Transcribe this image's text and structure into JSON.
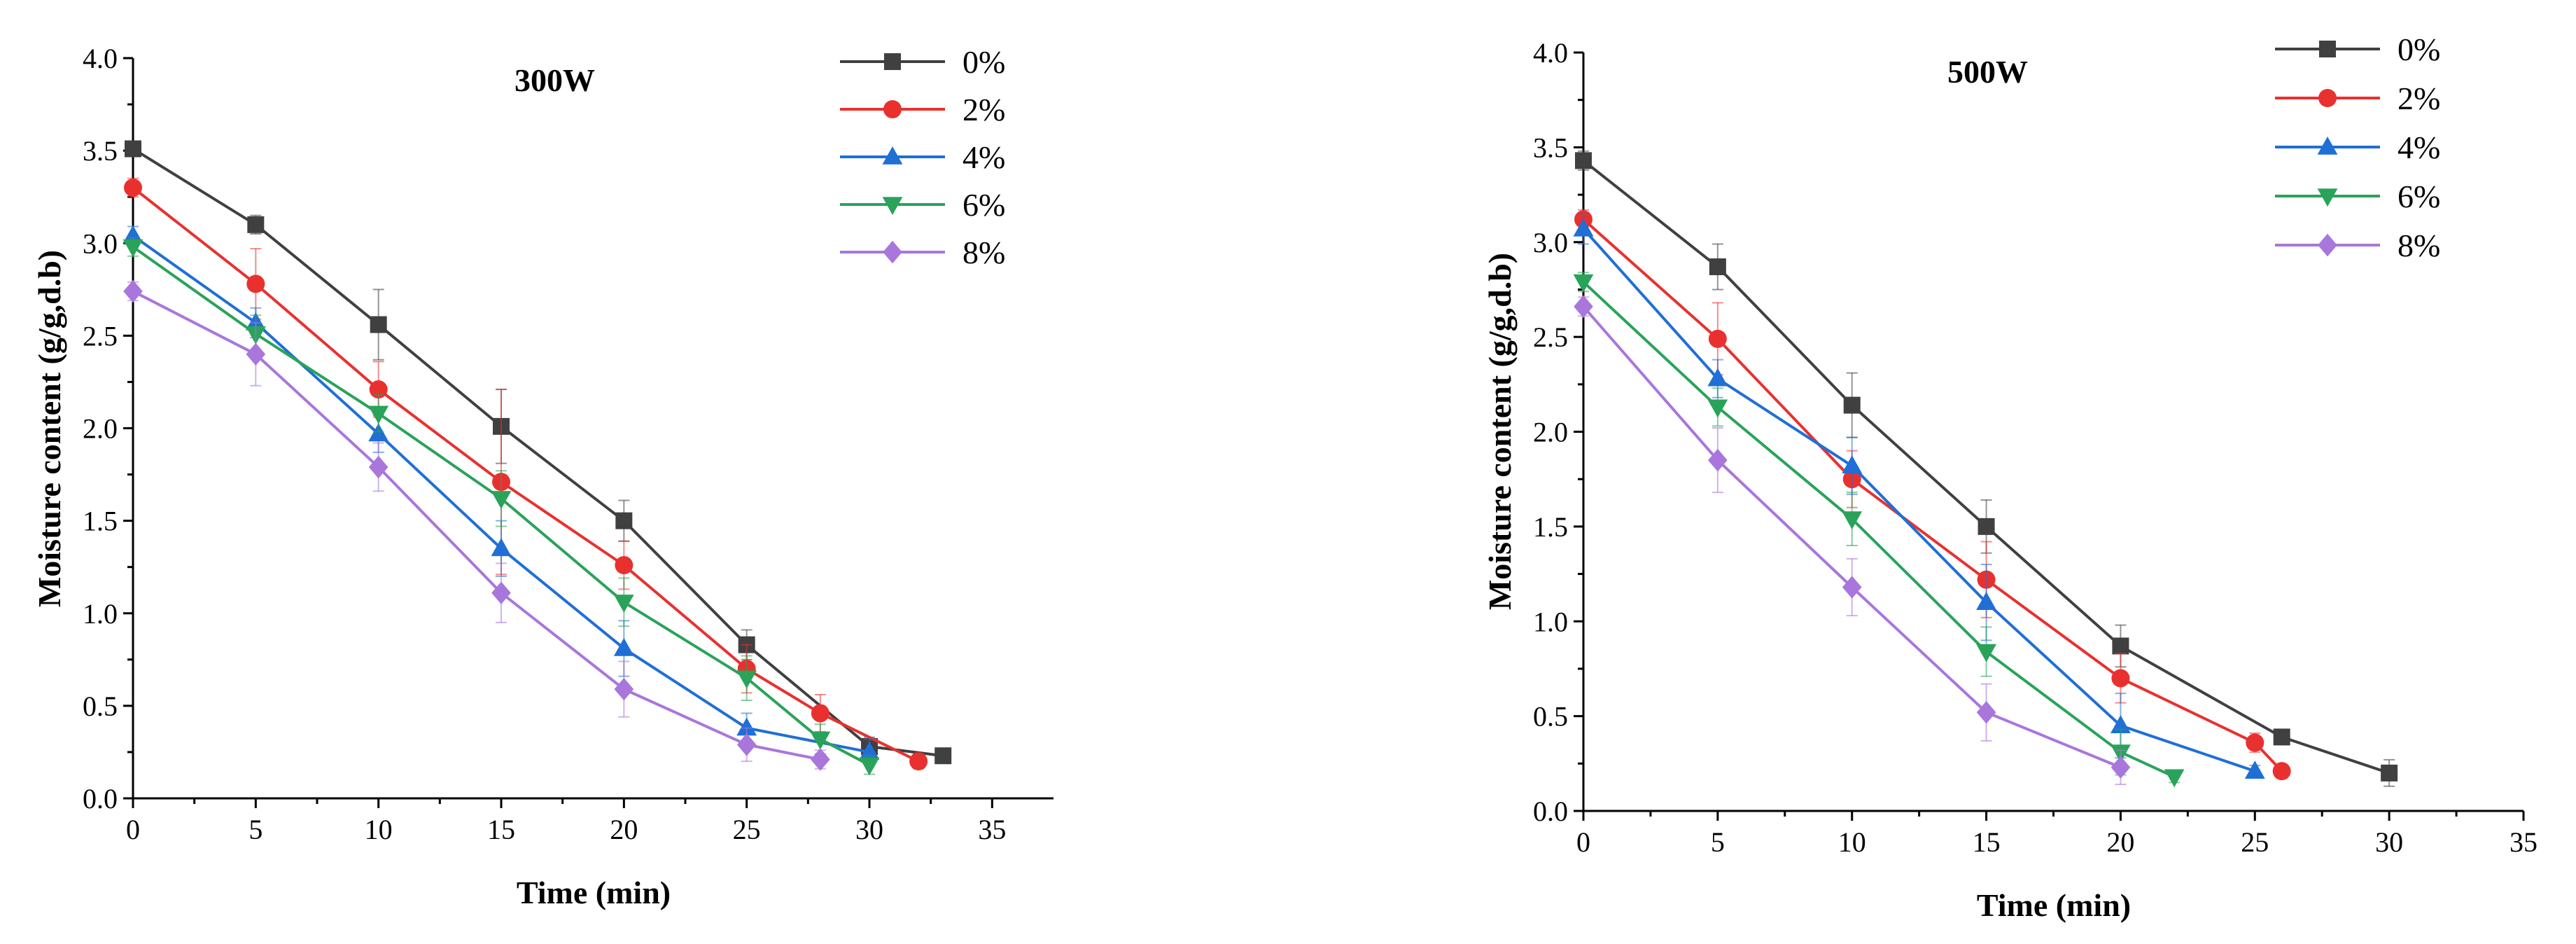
{
  "series_style": [
    {
      "color": "#404040",
      "marker": "square"
    },
    {
      "color": "#e8312f",
      "marker": "circle"
    },
    {
      "color": "#1f6fd6",
      "marker": "triangle-up"
    },
    {
      "color": "#2aa35a",
      "marker": "triangle-down"
    },
    {
      "color": "#a976dc",
      "marker": "diamond"
    }
  ],
  "chart_data": [
    {
      "type": "line",
      "title": "300W",
      "xlabel": "Time (min)",
      "ylabel": "Moisture content (g/g,d.b)",
      "xlim": [
        0,
        37.5
      ],
      "ylim": [
        0,
        4.0
      ],
      "xticks": [
        0,
        5,
        10,
        15,
        20,
        25,
        30,
        35
      ],
      "yticks": [
        0.0,
        0.5,
        1.0,
        1.5,
        2.0,
        2.5,
        3.0,
        3.5,
        4.0
      ],
      "xtick_labels": [
        "0",
        "5",
        "10",
        "15",
        "20",
        "25",
        "30",
        "35"
      ],
      "ytick_labels": [
        "0.0",
        "0.5",
        "1.0",
        "1.5",
        "2.0",
        "2.5",
        "3.0",
        "3.5",
        "4.0"
      ],
      "legend_position": "top-right",
      "series": [
        {
          "name": "0%",
          "x": [
            0,
            5,
            10,
            15,
            20,
            25,
            30,
            33
          ],
          "y": [
            3.51,
            3.1,
            2.56,
            2.01,
            1.5,
            0.83,
            0.28,
            0.23
          ],
          "err": [
            0.03,
            0.05,
            0.19,
            0.2,
            0.11,
            0.08,
            0.05,
            0.03
          ]
        },
        {
          "name": "2%",
          "x": [
            0,
            5,
            10,
            15,
            20,
            25,
            28,
            32
          ],
          "y": [
            3.3,
            2.78,
            2.21,
            1.71,
            1.26,
            0.7,
            0.46,
            0.2
          ],
          "err": [
            0.05,
            0.19,
            0.15,
            0.5,
            0.13,
            0.13,
            0.1,
            0.04
          ]
        },
        {
          "name": "4%",
          "x": [
            0,
            5,
            10,
            15,
            20,
            25,
            30
          ],
          "y": [
            3.04,
            2.57,
            1.97,
            1.35,
            0.81,
            0.38,
            0.25
          ],
          "err": [
            0.05,
            0.08,
            0.1,
            0.15,
            0.15,
            0.08,
            0.07
          ]
        },
        {
          "name": "6%",
          "x": [
            0,
            5,
            10,
            15,
            20,
            25,
            28,
            30
          ],
          "y": [
            2.98,
            2.51,
            2.08,
            1.62,
            1.06,
            0.65,
            0.32,
            0.18
          ],
          "err": [
            0.05,
            0.1,
            0.1,
            0.15,
            0.13,
            0.12,
            0.08,
            0.05
          ]
        },
        {
          "name": "8%",
          "x": [
            0,
            5,
            10,
            15,
            20,
            25,
            28
          ],
          "y": [
            2.74,
            2.4,
            1.79,
            1.11,
            0.59,
            0.29,
            0.21
          ],
          "err": [
            0.05,
            0.17,
            0.13,
            0.16,
            0.15,
            0.09,
            0.05
          ]
        }
      ]
    },
    {
      "type": "line",
      "title": "500W",
      "xlabel": "Time (min)",
      "ylabel": "Moisture content (g/g,d.b)",
      "xlim": [
        0,
        35
      ],
      "ylim": [
        0,
        4.0
      ],
      "xticks": [
        0,
        5,
        10,
        15,
        20,
        25,
        30,
        35
      ],
      "yticks": [
        0.0,
        0.5,
        1.0,
        1.5,
        2.0,
        2.5,
        3.0,
        3.5,
        4.0
      ],
      "xtick_labels": [
        "0",
        "5",
        "10",
        "15",
        "20",
        "25",
        "30",
        "35"
      ],
      "ytick_labels": [
        "0.0",
        "0.5",
        "1.0",
        "1.5",
        "2.0",
        "2.5",
        "3.0",
        "3.5",
        "4.0"
      ],
      "legend_position": "top-right",
      "series": [
        {
          "name": "0%",
          "x": [
            0,
            5,
            10,
            15,
            20,
            26,
            30
          ],
          "y": [
            3.43,
            2.87,
            2.14,
            1.5,
            0.87,
            0.39,
            0.2
          ],
          "err": [
            0.05,
            0.12,
            0.17,
            0.14,
            0.11,
            0.04,
            0.07
          ]
        },
        {
          "name": "2%",
          "x": [
            0,
            5,
            10,
            15,
            20,
            25,
            26
          ],
          "y": [
            3.12,
            2.49,
            1.75,
            1.22,
            0.7,
            0.36,
            0.21
          ],
          "err": [
            0.05,
            0.19,
            0.15,
            0.2,
            0.13,
            0.05,
            0.03
          ]
        },
        {
          "name": "4%",
          "x": [
            0,
            5,
            10,
            15,
            20,
            25
          ],
          "y": [
            3.07,
            2.28,
            1.82,
            1.1,
            0.45,
            0.21
          ],
          "err": [
            0.08,
            0.1,
            0.15,
            0.2,
            0.17,
            0.03
          ]
        },
        {
          "name": "6%",
          "x": [
            0,
            5,
            10,
            15,
            20,
            22
          ],
          "y": [
            2.79,
            2.13,
            1.54,
            0.84,
            0.31,
            0.18
          ],
          "err": [
            0.05,
            0.1,
            0.14,
            0.13,
            0.12,
            0.03
          ]
        },
        {
          "name": "8%",
          "x": [
            0,
            5,
            10,
            15,
            20
          ],
          "y": [
            2.66,
            1.85,
            1.18,
            0.52,
            0.23
          ],
          "err": [
            0.05,
            0.17,
            0.15,
            0.15,
            0.09
          ]
        }
      ]
    }
  ]
}
